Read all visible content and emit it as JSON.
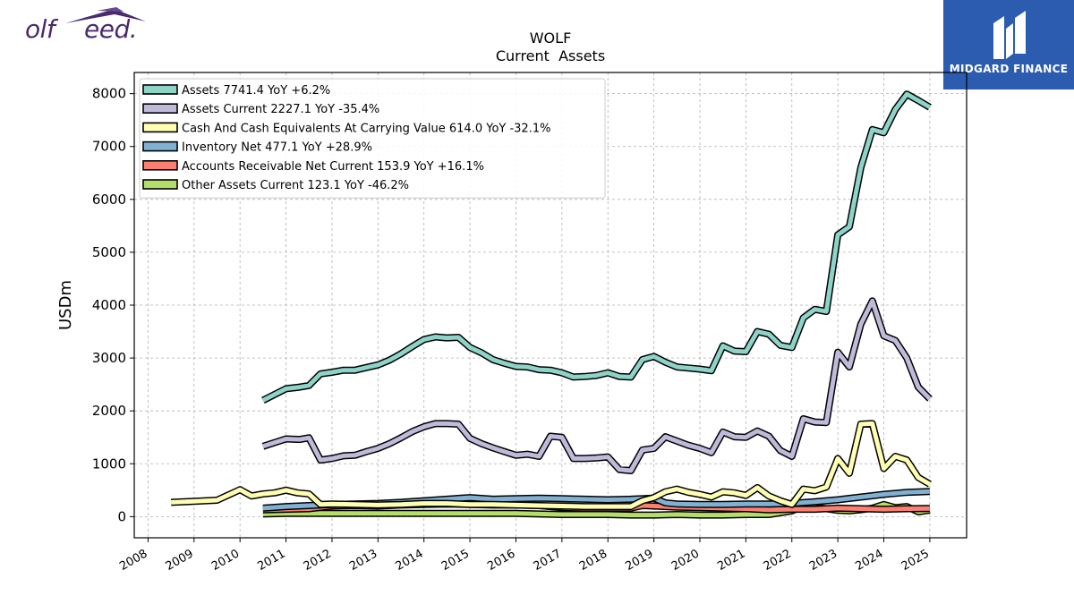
{
  "brand": {
    "left_logo_text_a": "olf",
    "left_logo_text_b": "eed.",
    "right_logo_text": "MIDGARD FINANCE"
  },
  "chart_data": {
    "type": "line",
    "title": "WOLF",
    "subtitle": "Current  Assets",
    "xlabel": "",
    "ylabel": "USDm",
    "ylim": [
      -400,
      8400
    ],
    "xlim": [
      2007.7,
      2025.8
    ],
    "grid": true,
    "legend_position": "top-left",
    "y_ticks": [
      0,
      1000,
      2000,
      3000,
      4000,
      5000,
      6000,
      7000,
      8000
    ],
    "x_ticks": [
      "2008",
      "2009",
      "2010",
      "2011",
      "2012",
      "2013",
      "2014",
      "2015",
      "2016",
      "2017",
      "2018",
      "2019",
      "2020",
      "2021",
      "2022",
      "2023",
      "2024",
      "2025"
    ],
    "series": [
      {
        "name": "Assets",
        "legend": "Assets  7741.4 YoY +6.2%",
        "color": "#8dd3c7",
        "points": [
          [
            2010.5,
            2200
          ],
          [
            2011.0,
            2420
          ],
          [
            2011.3,
            2450
          ],
          [
            2011.5,
            2480
          ],
          [
            2011.75,
            2700
          ],
          [
            2012.0,
            2730
          ],
          [
            2012.25,
            2770
          ],
          [
            2012.5,
            2770
          ],
          [
            2012.75,
            2820
          ],
          [
            2013.0,
            2870
          ],
          [
            2013.25,
            2960
          ],
          [
            2013.5,
            3080
          ],
          [
            2013.75,
            3220
          ],
          [
            2014.0,
            3350
          ],
          [
            2014.25,
            3400
          ],
          [
            2014.5,
            3380
          ],
          [
            2014.75,
            3390
          ],
          [
            2015.0,
            3200
          ],
          [
            2015.25,
            3100
          ],
          [
            2015.5,
            2970
          ],
          [
            2015.75,
            2900
          ],
          [
            2016.0,
            2840
          ],
          [
            2016.25,
            2830
          ],
          [
            2016.5,
            2780
          ],
          [
            2016.75,
            2770
          ],
          [
            2017.0,
            2720
          ],
          [
            2017.25,
            2640
          ],
          [
            2017.5,
            2650
          ],
          [
            2017.75,
            2670
          ],
          [
            2018.0,
            2720
          ],
          [
            2018.25,
            2650
          ],
          [
            2018.5,
            2640
          ],
          [
            2018.75,
            2970
          ],
          [
            2019.0,
            3030
          ],
          [
            2019.25,
            2920
          ],
          [
            2019.5,
            2830
          ],
          [
            2019.75,
            2810
          ],
          [
            2020.0,
            2790
          ],
          [
            2020.25,
            2760
          ],
          [
            2020.5,
            3230
          ],
          [
            2020.75,
            3130
          ],
          [
            2021.0,
            3120
          ],
          [
            2021.25,
            3500
          ],
          [
            2021.5,
            3450
          ],
          [
            2021.75,
            3240
          ],
          [
            2022.0,
            3200
          ],
          [
            2022.25,
            3760
          ],
          [
            2022.5,
            3920
          ],
          [
            2022.75,
            3880
          ],
          [
            2023.0,
            5330
          ],
          [
            2023.25,
            5480
          ],
          [
            2023.5,
            6600
          ],
          [
            2023.75,
            7320
          ],
          [
            2024.0,
            7260
          ],
          [
            2024.25,
            7700
          ],
          [
            2024.5,
            7990
          ],
          [
            2024.75,
            7870
          ],
          [
            2025.0,
            7741.4
          ]
        ]
      },
      {
        "name": "Assets Current",
        "legend": "Assets Current  2227.1 YoY -35.4%",
        "color": "#bebada",
        "points": [
          [
            2010.5,
            1330
          ],
          [
            2011.0,
            1470
          ],
          [
            2011.3,
            1460
          ],
          [
            2011.5,
            1490
          ],
          [
            2011.75,
            1070
          ],
          [
            2012.0,
            1100
          ],
          [
            2012.25,
            1150
          ],
          [
            2012.5,
            1160
          ],
          [
            2012.75,
            1230
          ],
          [
            2013.0,
            1290
          ],
          [
            2013.25,
            1380
          ],
          [
            2013.5,
            1490
          ],
          [
            2013.75,
            1610
          ],
          [
            2014.0,
            1700
          ],
          [
            2014.25,
            1760
          ],
          [
            2014.5,
            1760
          ],
          [
            2014.75,
            1750
          ],
          [
            2015.0,
            1480
          ],
          [
            2015.25,
            1380
          ],
          [
            2015.5,
            1300
          ],
          [
            2015.75,
            1230
          ],
          [
            2016.0,
            1160
          ],
          [
            2016.25,
            1180
          ],
          [
            2016.5,
            1140
          ],
          [
            2016.75,
            1520
          ],
          [
            2017.0,
            1500
          ],
          [
            2017.25,
            1100
          ],
          [
            2017.5,
            1100
          ],
          [
            2017.75,
            1110
          ],
          [
            2018.0,
            1130
          ],
          [
            2018.25,
            890
          ],
          [
            2018.5,
            870
          ],
          [
            2018.75,
            1260
          ],
          [
            2019.0,
            1290
          ],
          [
            2019.25,
            1510
          ],
          [
            2019.5,
            1430
          ],
          [
            2019.75,
            1350
          ],
          [
            2020.0,
            1290
          ],
          [
            2020.25,
            1210
          ],
          [
            2020.5,
            1600
          ],
          [
            2020.75,
            1510
          ],
          [
            2021.0,
            1500
          ],
          [
            2021.25,
            1620
          ],
          [
            2021.5,
            1520
          ],
          [
            2021.75,
            1250
          ],
          [
            2022.0,
            1140
          ],
          [
            2022.25,
            1850
          ],
          [
            2022.5,
            1790
          ],
          [
            2022.75,
            1780
          ],
          [
            2023.0,
            3110
          ],
          [
            2023.25,
            2830
          ],
          [
            2023.5,
            3640
          ],
          [
            2023.75,
            4080
          ],
          [
            2024.0,
            3420
          ],
          [
            2024.25,
            3330
          ],
          [
            2024.5,
            3000
          ],
          [
            2024.75,
            2450
          ],
          [
            2025.0,
            2227.1
          ]
        ]
      },
      {
        "name": "Cash And Cash Equivalents At Carrying Value",
        "legend": "Cash And Cash Equivalents At Carrying Value  614.0 YoY -32.1%",
        "color": "#ffffb3",
        "points": [
          [
            2008.5,
            270
          ],
          [
            2009.0,
            290
          ],
          [
            2009.5,
            310
          ],
          [
            2010.0,
            510
          ],
          [
            2010.25,
            390
          ],
          [
            2010.5,
            430
          ],
          [
            2010.75,
            450
          ],
          [
            2011.0,
            500
          ],
          [
            2011.25,
            450
          ],
          [
            2011.5,
            430
          ],
          [
            2011.75,
            230
          ],
          [
            2012.0,
            240
          ],
          [
            2012.5,
            230
          ],
          [
            2013.0,
            220
          ],
          [
            2013.5,
            230
          ],
          [
            2014.0,
            250
          ],
          [
            2014.5,
            250
          ],
          [
            2015.0,
            230
          ],
          [
            2015.5,
            230
          ],
          [
            2016.0,
            220
          ],
          [
            2016.5,
            210
          ],
          [
            2017.0,
            200
          ],
          [
            2017.5,
            190
          ],
          [
            2018.0,
            190
          ],
          [
            2018.5,
            190
          ],
          [
            2018.75,
            300
          ],
          [
            2019.0,
            360
          ],
          [
            2019.25,
            470
          ],
          [
            2019.5,
            520
          ],
          [
            2019.75,
            460
          ],
          [
            2020.0,
            420
          ],
          [
            2020.25,
            370
          ],
          [
            2020.5,
            470
          ],
          [
            2020.75,
            450
          ],
          [
            2021.0,
            400
          ],
          [
            2021.25,
            550
          ],
          [
            2021.5,
            390
          ],
          [
            2021.75,
            300
          ],
          [
            2022.0,
            230
          ],
          [
            2022.25,
            520
          ],
          [
            2022.5,
            490
          ],
          [
            2022.75,
            560
          ],
          [
            2023.0,
            1100
          ],
          [
            2023.25,
            820
          ],
          [
            2023.5,
            1750
          ],
          [
            2023.75,
            1760
          ],
          [
            2024.0,
            910
          ],
          [
            2024.25,
            1140
          ],
          [
            2024.5,
            1070
          ],
          [
            2024.75,
            740
          ],
          [
            2025.0,
            614.0
          ]
        ]
      },
      {
        "name": "Inventory Net",
        "legend": "Inventory Net  477.1 YoY +28.9%",
        "color": "#80b1d3",
        "points": [
          [
            2010.5,
            160
          ],
          [
            2011.0,
            190
          ],
          [
            2011.5,
            210
          ],
          [
            2012.0,
            230
          ],
          [
            2012.5,
            240
          ],
          [
            2013.0,
            250
          ],
          [
            2013.5,
            270
          ],
          [
            2014.0,
            300
          ],
          [
            2014.5,
            330
          ],
          [
            2015.0,
            360
          ],
          [
            2015.5,
            330
          ],
          [
            2016.0,
            340
          ],
          [
            2016.5,
            350
          ],
          [
            2017.0,
            340
          ],
          [
            2017.5,
            330
          ],
          [
            2018.0,
            320
          ],
          [
            2018.5,
            330
          ],
          [
            2019.0,
            350
          ],
          [
            2019.25,
            260
          ],
          [
            2019.5,
            240
          ],
          [
            2020.0,
            230
          ],
          [
            2020.5,
            230
          ],
          [
            2021.0,
            240
          ],
          [
            2021.5,
            240
          ],
          [
            2022.0,
            250
          ],
          [
            2022.5,
            280
          ],
          [
            2023.0,
            320
          ],
          [
            2023.5,
            370
          ],
          [
            2024.0,
            420
          ],
          [
            2024.5,
            460
          ],
          [
            2025.0,
            477.1
          ]
        ]
      },
      {
        "name": "Accounts Receivable Net Current",
        "legend": "Accounts Receivable Net Current  153.9 YoY +16.1%",
        "color": "#fb8072",
        "points": [
          [
            2010.5,
            130
          ],
          [
            2011.0,
            140
          ],
          [
            2011.5,
            150
          ],
          [
            2012.0,
            200
          ],
          [
            2012.5,
            210
          ],
          [
            2013.0,
            200
          ],
          [
            2013.5,
            220
          ],
          [
            2014.0,
            230
          ],
          [
            2014.5,
            240
          ],
          [
            2015.0,
            230
          ],
          [
            2015.5,
            220
          ],
          [
            2016.0,
            220
          ],
          [
            2016.5,
            210
          ],
          [
            2017.0,
            170
          ],
          [
            2017.5,
            160
          ],
          [
            2018.0,
            160
          ],
          [
            2018.5,
            160
          ],
          [
            2018.75,
            210
          ],
          [
            2019.0,
            200
          ],
          [
            2019.5,
            180
          ],
          [
            2020.0,
            170
          ],
          [
            2020.5,
            160
          ],
          [
            2021.0,
            150
          ],
          [
            2021.5,
            130
          ],
          [
            2022.0,
            140
          ],
          [
            2022.5,
            140
          ],
          [
            2023.0,
            160
          ],
          [
            2023.5,
            150
          ],
          [
            2024.0,
            140
          ],
          [
            2024.5,
            150
          ],
          [
            2025.0,
            153.9
          ]
        ]
      },
      {
        "name": "Other Assets Current",
        "legend": "Other Assets Current  123.1 YoY -46.2%",
        "color": "#b3de69",
        "points": [
          [
            2010.5,
            50
          ],
          [
            2011.0,
            60
          ],
          [
            2012.0,
            60
          ],
          [
            2013.0,
            60
          ],
          [
            2014.0,
            60
          ],
          [
            2015.0,
            60
          ],
          [
            2016.0,
            60
          ],
          [
            2016.5,
            50
          ],
          [
            2017.0,
            40
          ],
          [
            2017.5,
            40
          ],
          [
            2018.0,
            40
          ],
          [
            2018.5,
            30
          ],
          [
            2019.0,
            30
          ],
          [
            2019.5,
            40
          ],
          [
            2020.0,
            30
          ],
          [
            2020.5,
            30
          ],
          [
            2021.0,
            40
          ],
          [
            2021.5,
            40
          ],
          [
            2022.0,
            110
          ],
          [
            2022.25,
            200
          ],
          [
            2022.5,
            170
          ],
          [
            2022.75,
            150
          ],
          [
            2023.0,
            120
          ],
          [
            2023.25,
            110
          ],
          [
            2023.5,
            130
          ],
          [
            2023.75,
            160
          ],
          [
            2024.0,
            230
          ],
          [
            2024.25,
            170
          ],
          [
            2024.5,
            190
          ],
          [
            2024.75,
            90
          ],
          [
            2025.0,
            123.1
          ]
        ]
      }
    ]
  }
}
